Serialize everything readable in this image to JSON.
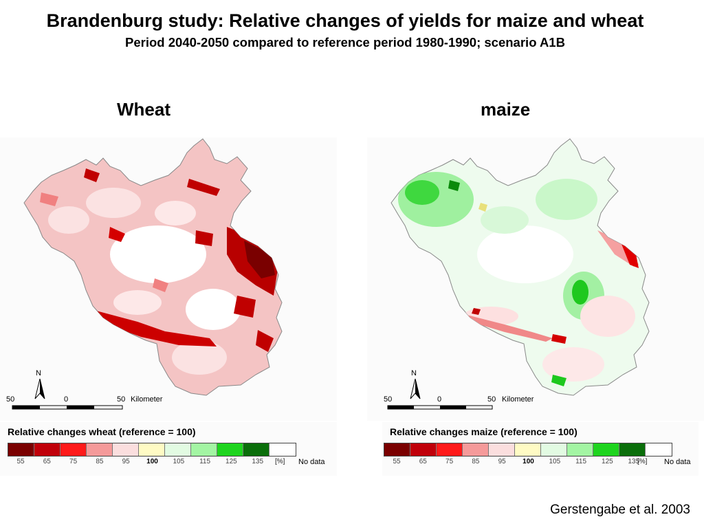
{
  "title": "Brandenburg study: Relative changes of yields for maize and wheat",
  "subtitle": "Period 2040-2050 compared to reference period 1980-1990; scenario A1B",
  "panels": {
    "wheat": {
      "title": "Wheat",
      "legend_title": "Relative changes wheat (reference = 100)"
    },
    "maize": {
      "title": "maize",
      "legend_title": "Relative changes maize (reference = 100)"
    }
  },
  "scale_bar": {
    "north": "N",
    "labels": [
      "50",
      "0",
      "50"
    ],
    "unit": "Kilometer"
  },
  "legend": {
    "colors": [
      "#7a0000",
      "#c0000a",
      "#ff1a1a",
      "#f59a9a",
      "#fbdede",
      "#fffbc4",
      "#e2fbe2",
      "#a3f5a3",
      "#1ed41e",
      "#0a6e0a",
      "#ffffff"
    ],
    "ticks": [
      "55",
      "65",
      "75",
      "85",
      "95",
      "100",
      "105",
      "115",
      "125",
      "135"
    ],
    "unit": "[%]",
    "no_data": "No data"
  },
  "citation": "Gerstengabe et al. 2003"
}
